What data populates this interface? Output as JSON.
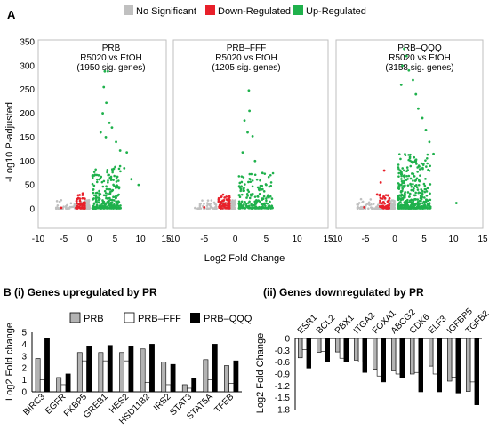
{
  "colors": {
    "ns": "#c0c0c0",
    "down": "#e8202a",
    "up": "#1fb14c",
    "bar_prb": "#b3b3b3",
    "bar_fff": "#ffffff",
    "bar_qqq": "#000000",
    "axis": "#000000",
    "box": "#bfbfbf"
  },
  "figure": {
    "panel_a_label": "A",
    "legend_a": [
      {
        "label": "No Significant",
        "color": "#c0c0c0"
      },
      {
        "label": "Down-Regulated",
        "color": "#e8202a"
      },
      {
        "label": "Up-Regulated",
        "color": "#1fb14c"
      }
    ],
    "volcano_ylabel": "-Log10 P-adjusted",
    "volcano_xlabel": "Log2 Fold Change",
    "panel_b_i_title": "B (i) Genes upregulated by PR",
    "panel_b_ii_title": "(ii) Genes downregulated by PR",
    "bar_legend": [
      "PRB",
      "PRB–FFF",
      "PRB–QQQ"
    ],
    "bar_ylabel": "Log2 Fold change",
    "bar_ylabel_ii": "Log2 Fold Change"
  },
  "chart_data": [
    {
      "type": "scatter",
      "panel": "A-PRB",
      "title": "PRB",
      "subtitle": "R5020 vs EtOH",
      "note": "(1950 sig. genes)",
      "xlim": [
        -10,
        15
      ],
      "ylim": [
        0,
        350
      ],
      "xticks": [
        -10,
        -5,
        0,
        5,
        10,
        15
      ],
      "yticks": [
        0,
        50,
        100,
        150,
        200,
        250,
        300,
        350
      ],
      "highlight_points": [
        [
          3.0,
          288
        ],
        [
          3.6,
          288
        ],
        [
          2.8,
          255
        ],
        [
          3.3,
          222
        ],
        [
          2.6,
          200
        ],
        [
          3.9,
          180
        ],
        [
          4.4,
          170
        ],
        [
          2.2,
          160
        ],
        [
          3.2,
          150
        ],
        [
          5.2,
          140
        ],
        [
          6.0,
          122
        ],
        [
          7.3,
          118
        ],
        [
          6.8,
          85
        ],
        [
          8.2,
          62
        ],
        [
          9.6,
          50
        ],
        [
          -1.3,
          32
        ],
        [
          -2.1,
          22
        ],
        [
          -5.5,
          2
        ]
      ]
    },
    {
      "type": "scatter",
      "panel": "A-PRB-FFF",
      "title": "PRB–FFF",
      "subtitle": "R5020 vs EtOH",
      "note": "(1205 sig. genes)",
      "xlim": [
        -10,
        15
      ],
      "ylim": [
        0,
        350
      ],
      "xticks": [
        -10,
        -5,
        0,
        5,
        10,
        15
      ],
      "yticks": [
        0,
        50,
        100,
        150,
        200,
        250,
        300,
        350
      ],
      "highlight_points": [
        [
          2.2,
          248
        ],
        [
          2.3,
          205
        ],
        [
          1.5,
          185
        ],
        [
          2.0,
          160
        ],
        [
          2.8,
          152
        ],
        [
          1.2,
          118
        ],
        [
          3.2,
          100
        ],
        [
          4.4,
          75
        ],
        [
          5.0,
          50
        ],
        [
          -1.0,
          20
        ],
        [
          -2.2,
          12
        ],
        [
          -5.0,
          3
        ]
      ]
    },
    {
      "type": "scatter",
      "panel": "A-PRB-QQQ",
      "title": "PRB–QQQ",
      "subtitle": "R5020 vs EtOH",
      "note": "(3158 sig. genes)",
      "xlim": [
        -10,
        15
      ],
      "ylim": [
        0,
        350
      ],
      "xticks": [
        -10,
        -5,
        0,
        5,
        10,
        15
      ],
      "yticks": [
        0,
        50,
        100,
        150,
        200,
        250,
        300,
        350
      ],
      "highlight_points": [
        [
          1.6,
          335
        ],
        [
          2.0,
          320
        ],
        [
          1.3,
          300
        ],
        [
          2.4,
          290
        ],
        [
          3.1,
          270
        ],
        [
          1.1,
          260
        ],
        [
          3.6,
          240
        ],
        [
          4.0,
          210
        ],
        [
          4.7,
          190
        ],
        [
          5.3,
          165
        ],
        [
          5.9,
          140
        ],
        [
          6.6,
          115
        ],
        [
          10.5,
          12
        ],
        [
          -1.8,
          80
        ],
        [
          -2.4,
          55
        ],
        [
          -3.0,
          30
        ],
        [
          -5.2,
          3
        ]
      ]
    },
    {
      "type": "bar",
      "panel": "B-i",
      "categories": [
        "BIRC3",
        "EGFR",
        "FKBP5",
        "GREB1",
        "HES2",
        "HSD11B2",
        "IRS2",
        "STAT3",
        "STAT5A",
        "TFEB"
      ],
      "series": [
        {
          "name": "PRB",
          "values": [
            2.8,
            1.2,
            3.3,
            3.3,
            3.3,
            3.6,
            2.5,
            0.6,
            2.7,
            2.2
          ]
        },
        {
          "name": "PRB–FFF",
          "values": [
            1.0,
            0.6,
            2.6,
            2.6,
            2.6,
            0.8,
            0.6,
            0.3,
            1.0,
            0.7
          ]
        },
        {
          "name": "PRB–QQQ",
          "values": [
            4.5,
            1.5,
            3.8,
            3.9,
            3.8,
            4.0,
            2.3,
            1.1,
            4.0,
            2.6
          ]
        }
      ],
      "ylabel": "Log2 Fold change",
      "ylim": [
        0,
        5
      ],
      "yticks": [
        0,
        1,
        2,
        3,
        4,
        5
      ]
    },
    {
      "type": "bar",
      "panel": "B-ii",
      "categories": [
        "ESR1",
        "BCL2",
        "PBX1",
        "ITGA2",
        "FOXA1",
        "ABCG2",
        "CDK6",
        "ELF3",
        "IGFBP5",
        "TGFB2"
      ],
      "series": [
        {
          "name": "PRB",
          "values": [
            -0.49,
            -0.35,
            -0.34,
            -0.55,
            -0.78,
            -0.82,
            -0.9,
            -0.7,
            -1.08,
            -1.34
          ]
        },
        {
          "name": "PRB–FFF",
          "values": [
            -0.28,
            -0.33,
            -0.5,
            -0.6,
            -0.95,
            -0.9,
            -0.86,
            -0.9,
            -0.98,
            -1.1
          ]
        },
        {
          "name": "PRB–QQQ",
          "values": [
            -0.75,
            -0.6,
            -0.6,
            -0.86,
            -1.1,
            -1.0,
            -1.35,
            -1.35,
            -1.38,
            -1.68
          ]
        }
      ],
      "ylabel": "Log2 Fold Change",
      "ylim": [
        -1.8,
        0
      ],
      "yticks": [
        "0",
        "-0.3",
        "-0.6",
        "-0.9",
        "-1.2",
        "-1.5",
        "-1.8"
      ]
    }
  ]
}
